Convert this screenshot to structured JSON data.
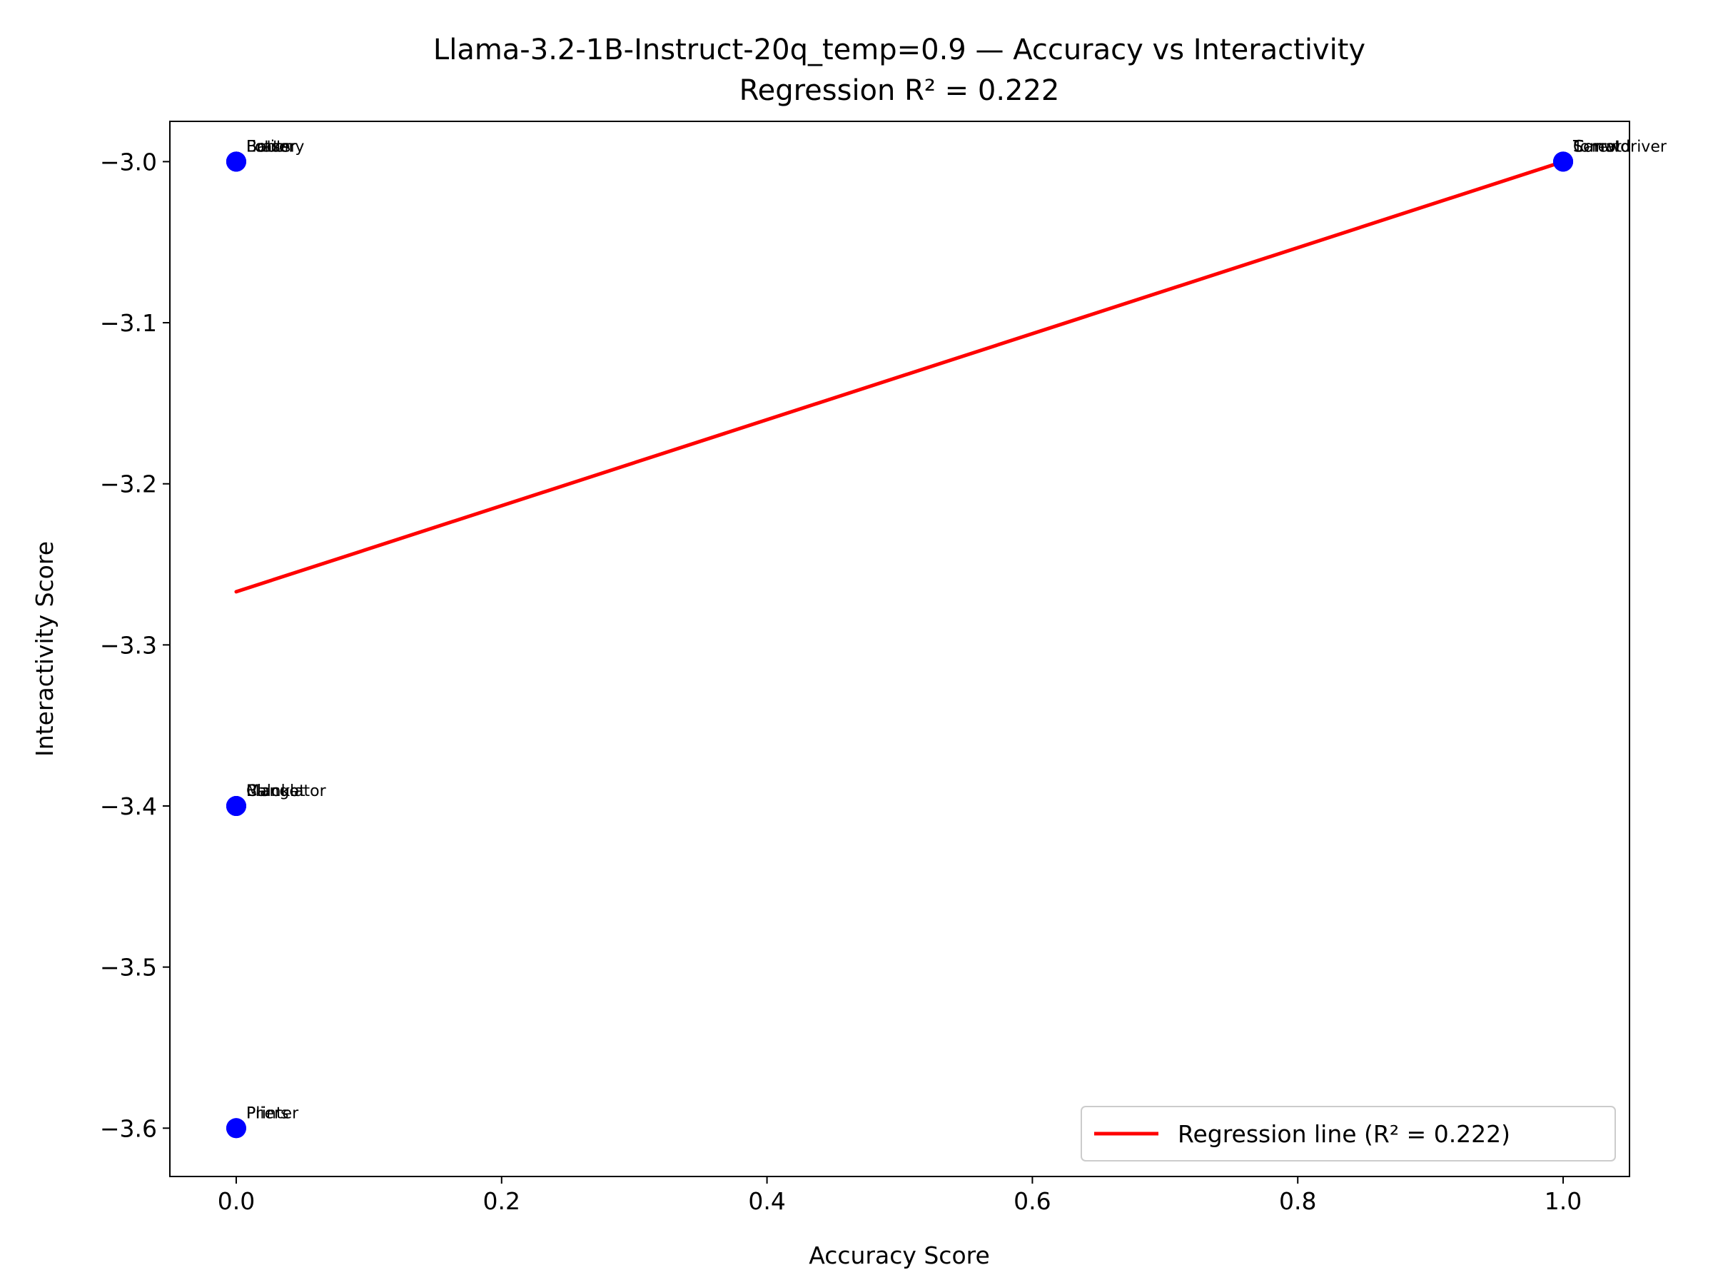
{
  "chart_data": {
    "type": "scatter",
    "title": "Llama-3.2-1B-Instruct-20q_temp=0.9 — Accuracy vs Interactivity",
    "subtitle": "Regression R² = 0.222",
    "xlabel": "Accuracy Score",
    "ylabel": "Interactivity Score",
    "xlim": [
      -0.05,
      1.05
    ],
    "ylim": [
      -3.63,
      -2.975
    ],
    "xticks": [
      0.0,
      0.2,
      0.4,
      0.6,
      0.8,
      1.0
    ],
    "xtick_labels": [
      "0.0",
      "0.2",
      "0.4",
      "0.6",
      "0.8",
      "1.0"
    ],
    "yticks": [
      -3.0,
      -3.1,
      -3.2,
      -3.3,
      -3.4,
      -3.5,
      -3.6
    ],
    "ytick_labels": [
      "−3.0",
      "−3.1",
      "−3.2",
      "−3.3",
      "−3.4",
      "−3.5",
      "−3.6"
    ],
    "grid": false,
    "point_color": "#0000ff",
    "line_color": "#ff0000",
    "points": [
      {
        "x": 0.0,
        "y": -3.0,
        "label": "Battery"
      },
      {
        "x": 0.0,
        "y": -3.0,
        "label": "Eraser"
      },
      {
        "x": 0.0,
        "y": -3.0,
        "label": "Boots"
      },
      {
        "x": 0.0,
        "y": -3.0,
        "label": "Lotion"
      },
      {
        "x": 0.0,
        "y": -3.4,
        "label": "Calculator"
      },
      {
        "x": 0.0,
        "y": -3.4,
        "label": "Blanket"
      },
      {
        "x": 0.0,
        "y": -3.4,
        "label": "Mango"
      },
      {
        "x": 0.0,
        "y": -3.6,
        "label": "Printer"
      },
      {
        "x": 0.0,
        "y": -3.6,
        "label": "Pliers"
      },
      {
        "x": 1.0,
        "y": -3.0,
        "label": "Screwdriver"
      },
      {
        "x": 1.0,
        "y": -3.0,
        "label": "Carrot"
      },
      {
        "x": 1.0,
        "y": -3.0,
        "label": "Tomato"
      }
    ],
    "regression": {
      "x": [
        0.0,
        1.0
      ],
      "y": [
        -3.267,
        -3.0
      ],
      "r2": 0.222
    },
    "legend": {
      "label": "Regression line (R² = 0.222)",
      "placement": "lower-right"
    }
  }
}
